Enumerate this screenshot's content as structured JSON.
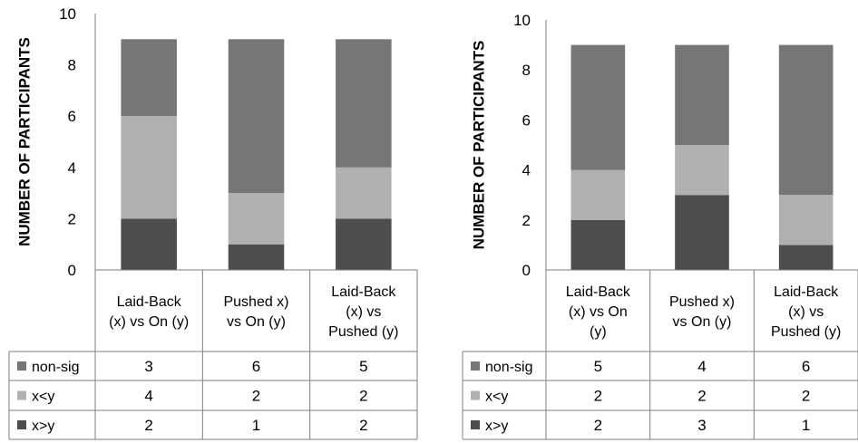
{
  "chart_data": [
    {
      "type": "bar",
      "stacked": true,
      "ylabel": "NUMBER OF PARTICIPANTS",
      "ylim": [
        0,
        10
      ],
      "yticks": [
        "0",
        "2",
        "4",
        "6",
        "8",
        "10"
      ],
      "categories": [
        [
          "Laid-Back",
          "(x) vs On (y)"
        ],
        [
          "Pushed x)",
          "vs On (y)"
        ],
        [
          "Laid-Back",
          "(x) vs",
          "Pushed (y)"
        ]
      ],
      "series": [
        {
          "name": "non-sig",
          "color": "#767676",
          "values": [
            3,
            6,
            5
          ]
        },
        {
          "name": "x<y",
          "color": "#b0b0b0",
          "values": [
            4,
            2,
            2
          ]
        },
        {
          "name": "x>y",
          "color": "#4d4d4d",
          "values": [
            2,
            1,
            2
          ]
        }
      ]
    },
    {
      "type": "bar",
      "stacked": true,
      "ylabel": "NUMBER OF PARTICIPANTS",
      "ylim": [
        0,
        10
      ],
      "yticks": [
        "0",
        "2",
        "4",
        "6",
        "8",
        "10"
      ],
      "categories": [
        [
          "Laid-Back",
          "(x) vs On",
          "(y)"
        ],
        [
          "Pushed x)",
          "vs On (y)"
        ],
        [
          "Laid-Back",
          "(x) vs",
          "Pushed (y)"
        ]
      ],
      "series": [
        {
          "name": "non-sig",
          "color": "#767676",
          "values": [
            5,
            4,
            6
          ]
        },
        {
          "name": "x<y",
          "color": "#b0b0b0",
          "values": [
            2,
            2,
            2
          ]
        },
        {
          "name": "x>y",
          "color": "#4d4d4d",
          "values": [
            2,
            3,
            1
          ]
        }
      ]
    }
  ]
}
